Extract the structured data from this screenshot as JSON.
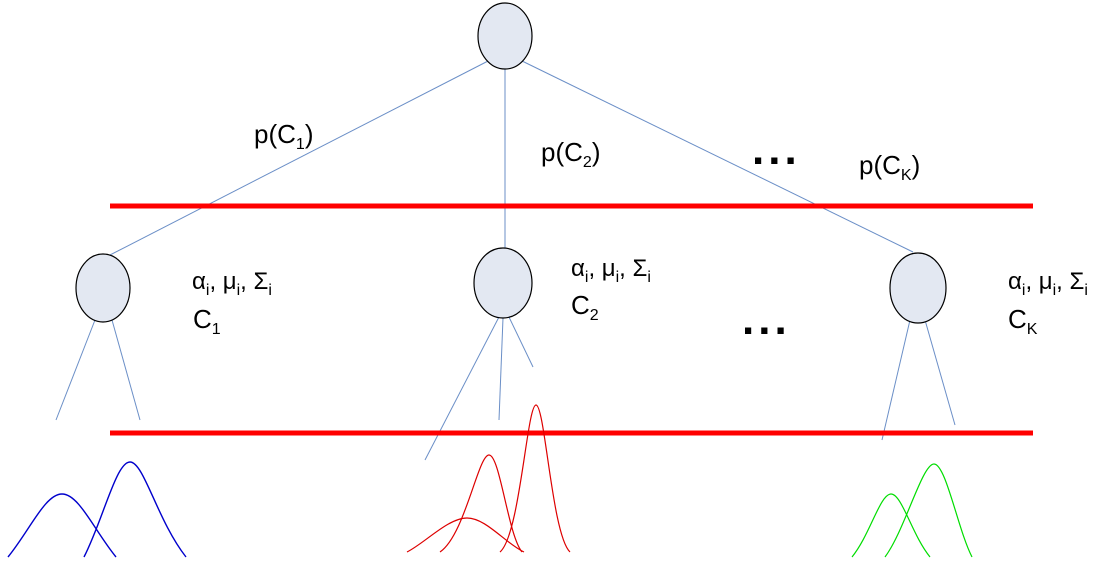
{
  "edges": {
    "c1": {
      "prefix": "p(C",
      "sub": "1",
      "suffix": ")"
    },
    "c2": {
      "prefix": "p(C",
      "sub": "2",
      "suffix": ")"
    },
    "ck": {
      "prefix": "p(C",
      "sub": "K",
      "suffix": ")"
    }
  },
  "params": {
    "alpha": "α",
    "mu": "μ",
    "sigma": "Σ",
    "index": "i",
    "sep": ", "
  },
  "classes": {
    "c1": {
      "letter": "C",
      "sub": "1"
    },
    "c2": {
      "letter": "C",
      "sub": "2"
    },
    "ck": {
      "letter": "C",
      "sub": "K"
    }
  },
  "ellipsis": "...",
  "colors": {
    "node_fill": "#e3e8f2",
    "node_stroke": "#000000",
    "edge": "#6b8fc7",
    "level_line": "#ff0000",
    "gauss_c1": "#0000cc",
    "gauss_c2": "#dd0000",
    "gauss_ck": "#00dd00"
  }
}
